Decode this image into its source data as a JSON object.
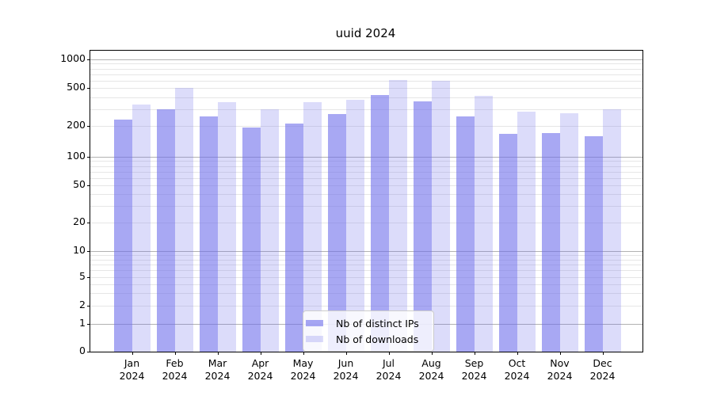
{
  "title": "uuid 2024",
  "chart_data": {
    "type": "bar",
    "title": "uuid 2024",
    "categories": [
      "Jan",
      "Feb",
      "Mar",
      "Apr",
      "May",
      "Jun",
      "Jul",
      "Aug",
      "Sep",
      "Oct",
      "Nov",
      "Dec"
    ],
    "year_label": "2024",
    "series": [
      {
        "name": "Nb of distinct IPs",
        "values": [
          232,
          298,
          252,
          193,
          212,
          268,
          420,
          362,
          252,
          168,
          172,
          160
        ]
      },
      {
        "name": "Nb of downloads",
        "values": [
          335,
          500,
          358,
          298,
          352,
          375,
          608,
          598,
          412,
          282,
          272,
          298
        ]
      }
    ],
    "yscale": "symlog",
    "ylim": [
      0,
      1200
    ],
    "yticks": [
      0,
      1,
      2,
      5,
      10,
      20,
      50,
      100,
      200,
      500,
      1000
    ],
    "grid": true,
    "legend_position": "lower center",
    "colors": {
      "ips_bar": "rgba(110,110,235,0.6)",
      "downloads_bar": "rgba(110,110,235,0.24)",
      "major_grid": "#b2b2b2",
      "minor_grid": "#e6e6e6",
      "axis": "#000000",
      "legend_border": "#cccccc"
    }
  }
}
